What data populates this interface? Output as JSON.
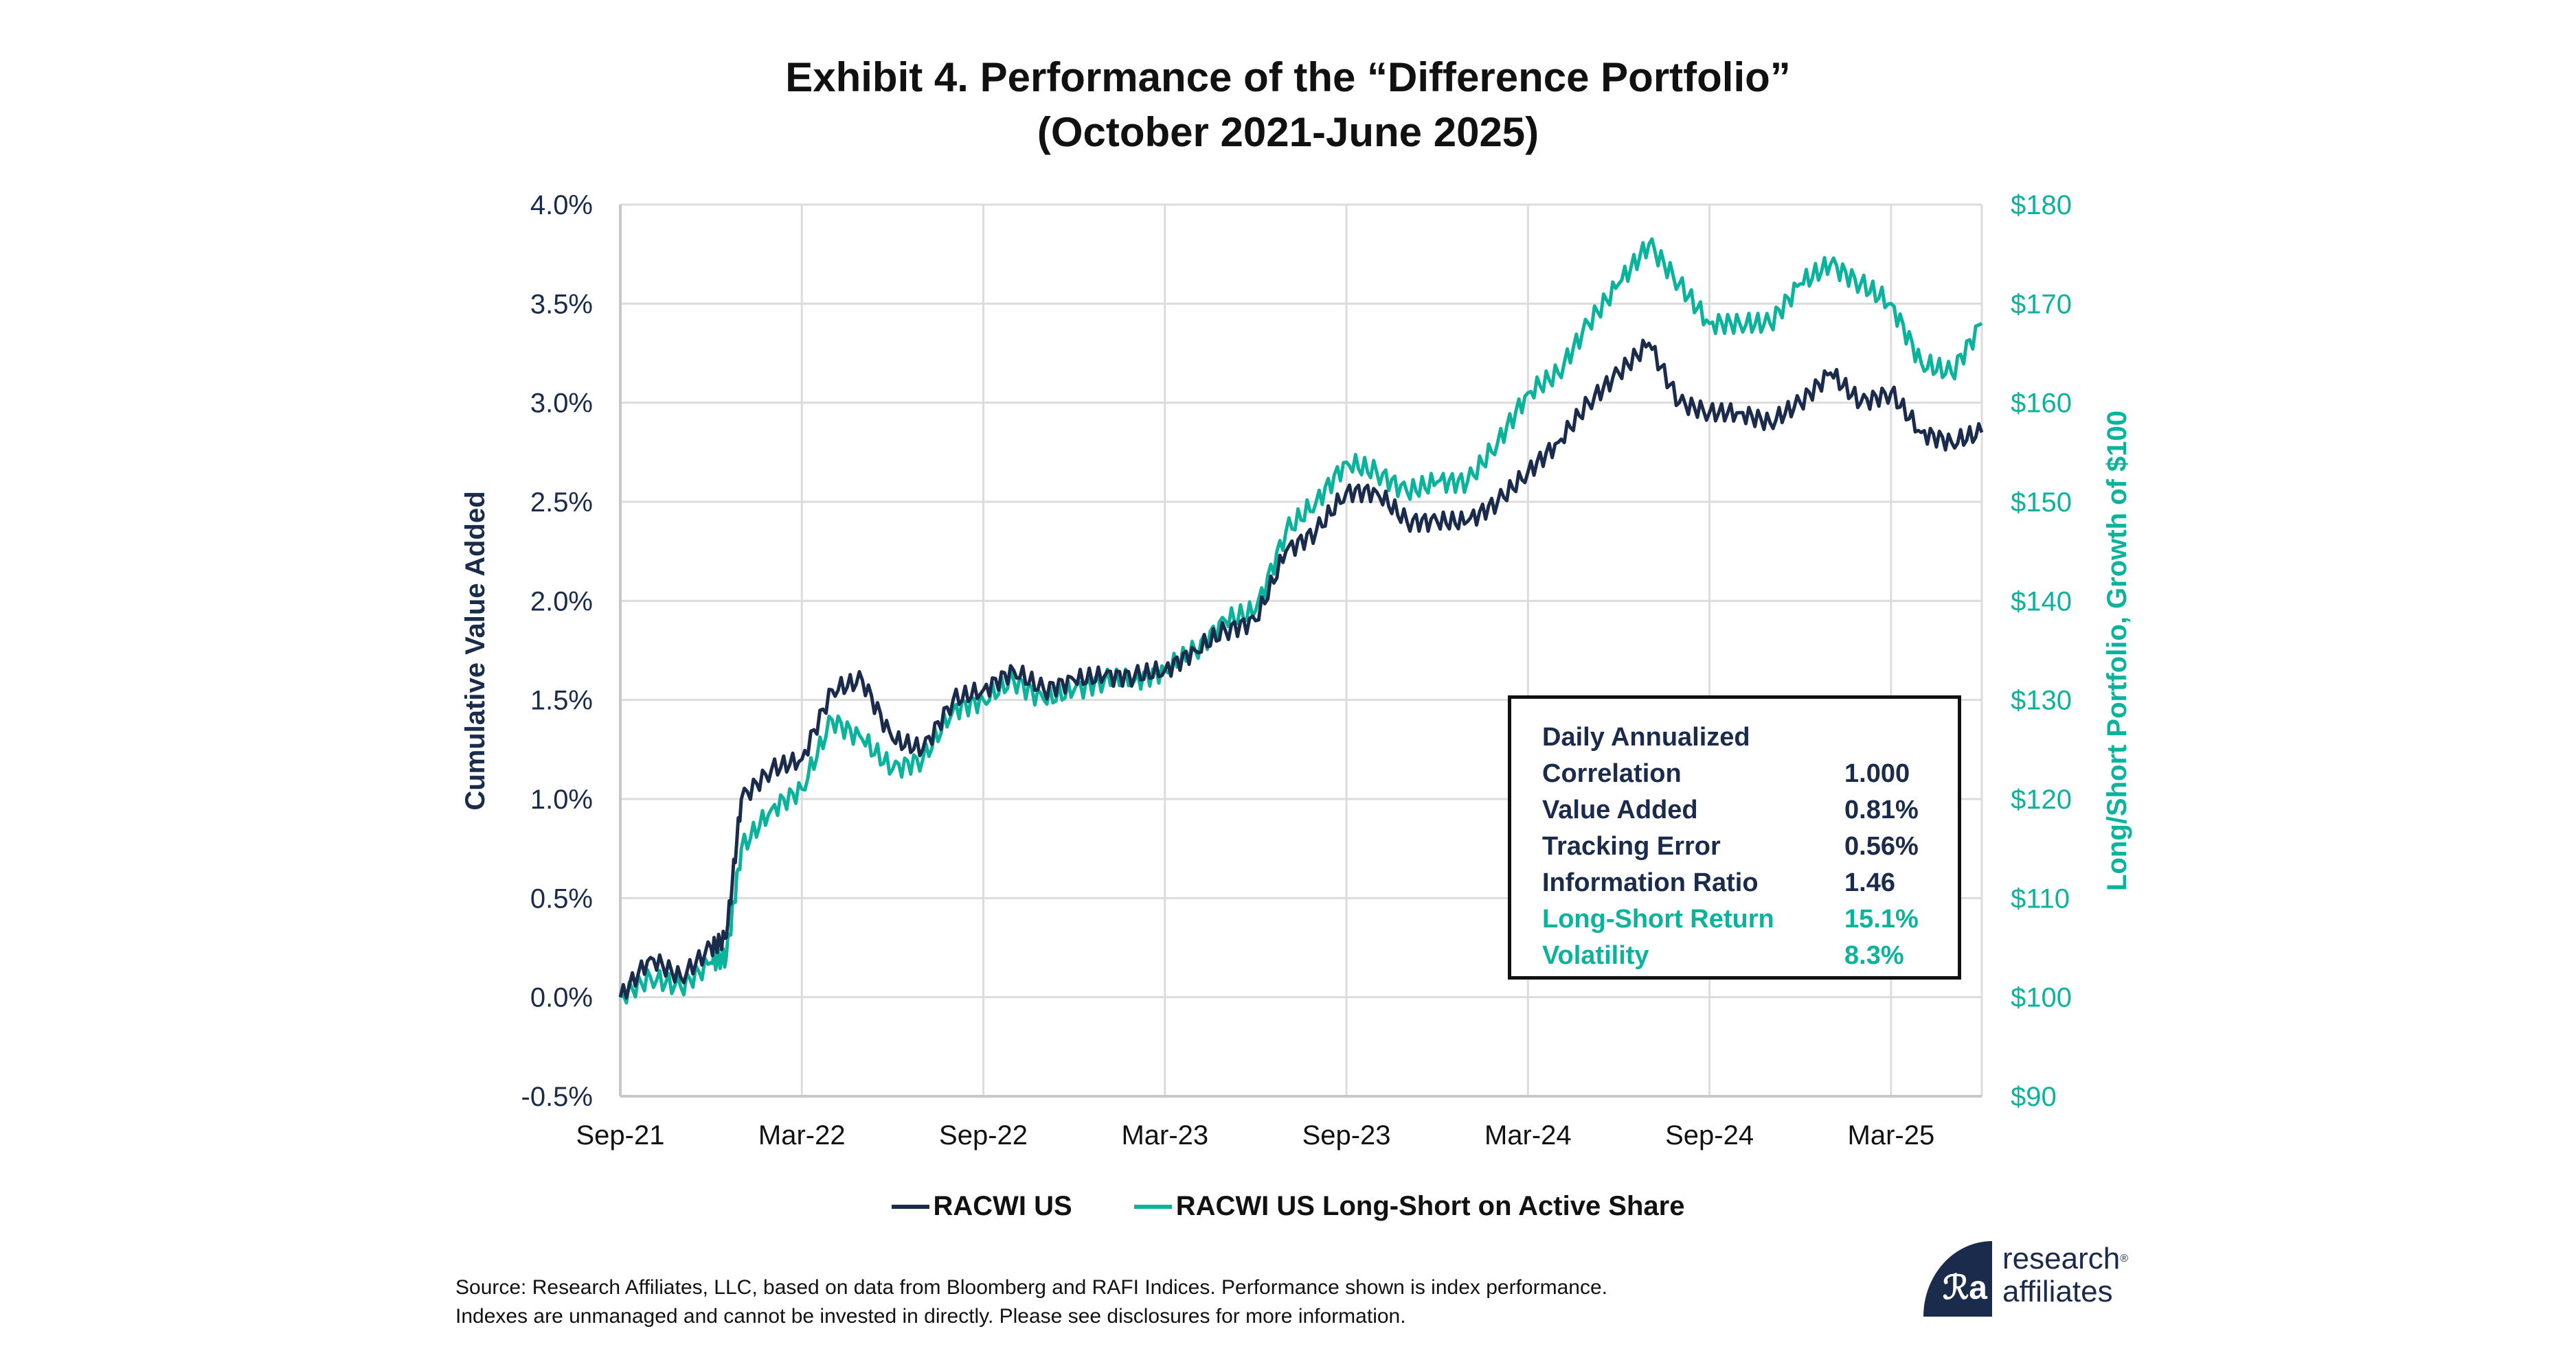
{
  "title_line1": "Exhibit 4. Performance of the “Difference Portfolio”",
  "title_line2": "(October 2021-June 2025)",
  "chart_data": {
    "type": "line",
    "title": "Exhibit 4. Performance of the “Difference Portfolio” (October 2021-June 2025)",
    "xlabel": "",
    "ylabel": "Cumulative Value Added",
    "y2label": "Long/Short Portfolio, Growth of $100",
    "x_ticks": [
      "Sep-21",
      "Mar-22",
      "Sep-22",
      "Mar-23",
      "Sep-23",
      "Mar-24",
      "Sep-24",
      "Mar-25"
    ],
    "x_range_months": [
      0,
      45
    ],
    "y_ticks": [
      "-0.5%",
      "0.0%",
      "0.5%",
      "1.0%",
      "1.5%",
      "2.0%",
      "2.5%",
      "3.0%",
      "3.5%",
      "4.0%"
    ],
    "ylim": [
      -0.5,
      4.0
    ],
    "y2_ticks": [
      "$90",
      "$100",
      "$110",
      "$120",
      "$130",
      "$140",
      "$150",
      "$160",
      "$170",
      "$180"
    ],
    "y2lim": [
      90,
      180
    ],
    "grid": true,
    "legend_position": "bottom",
    "x_months": [
      0,
      1,
      2,
      3,
      3.5,
      4,
      5,
      6,
      7,
      8,
      9,
      10,
      11,
      12,
      13,
      14,
      15,
      16,
      17,
      18,
      19,
      20,
      21,
      22,
      23,
      24,
      25,
      26,
      27,
      28,
      29,
      30,
      31,
      32,
      33,
      34,
      35,
      36,
      37,
      38,
      39,
      40,
      41,
      42,
      43,
      44,
      45
    ],
    "series": [
      {
        "name": "RACWI US",
        "axis": "left",
        "color": "#1b2b4b",
        "values": [
          0.0,
          0.2,
          0.1,
          0.25,
          0.3,
          1.0,
          1.15,
          1.2,
          1.55,
          1.6,
          1.3,
          1.25,
          1.5,
          1.55,
          1.65,
          1.55,
          1.6,
          1.62,
          1.62,
          1.65,
          1.75,
          1.85,
          1.9,
          2.25,
          2.35,
          2.55,
          2.55,
          2.4,
          2.4,
          2.4,
          2.5,
          2.65,
          2.8,
          3.0,
          3.15,
          3.3,
          3.0,
          2.95,
          2.95,
          2.9,
          3.0,
          3.15,
          3.0,
          3.05,
          2.85,
          2.8,
          2.85
        ]
      },
      {
        "name": "RACWI US Long-Short on Active Share",
        "axis": "right",
        "color": "#0bb39c",
        "values": [
          100,
          102,
          101,
          103.5,
          104,
          115,
          119,
          121,
          128,
          126,
          123,
          124,
          129,
          130,
          132,
          130,
          131,
          132,
          132,
          133,
          135,
          138,
          139,
          147,
          150,
          154,
          153,
          151,
          152,
          152,
          156,
          161,
          163,
          168,
          172,
          176,
          172,
          168,
          168,
          168,
          172,
          174,
          172,
          170,
          164,
          163,
          168
        ]
      }
    ]
  },
  "stats": {
    "header": "Daily Annualized",
    "rows": [
      {
        "label": "Correlation",
        "value": "1.000",
        "color": "navy"
      },
      {
        "label": "Value Added",
        "value": "0.81%",
        "color": "navy"
      },
      {
        "label": "Tracking Error",
        "value": "0.56%",
        "color": "navy"
      },
      {
        "label": "Information Ratio",
        "value": "1.46",
        "color": "navy"
      },
      {
        "label": "Long-Short Return",
        "value": "15.1%",
        "color": "teal"
      },
      {
        "label": "Volatility",
        "value": "8.3%",
        "color": "teal"
      }
    ]
  },
  "legend": [
    {
      "label": "RACWI US",
      "color": "#1b2b4b"
    },
    {
      "label": "RACWI US Long-Short on Active Share",
      "color": "#0bb39c"
    }
  ],
  "footer": {
    "line1": "Source: Research Affiliates, LLC, based on data from Bloomberg and RAFI Indices. Performance shown is index performance.",
    "line2": "Indexes are unmanaged and cannot be invested in directly. Please see disclosures for more information."
  },
  "logo": {
    "line1": "research",
    "line2": "affiliates",
    "mark": "ℛa",
    "reg": "®"
  },
  "colors": {
    "navy": "#1b2b4b",
    "teal": "#0bb39c"
  }
}
